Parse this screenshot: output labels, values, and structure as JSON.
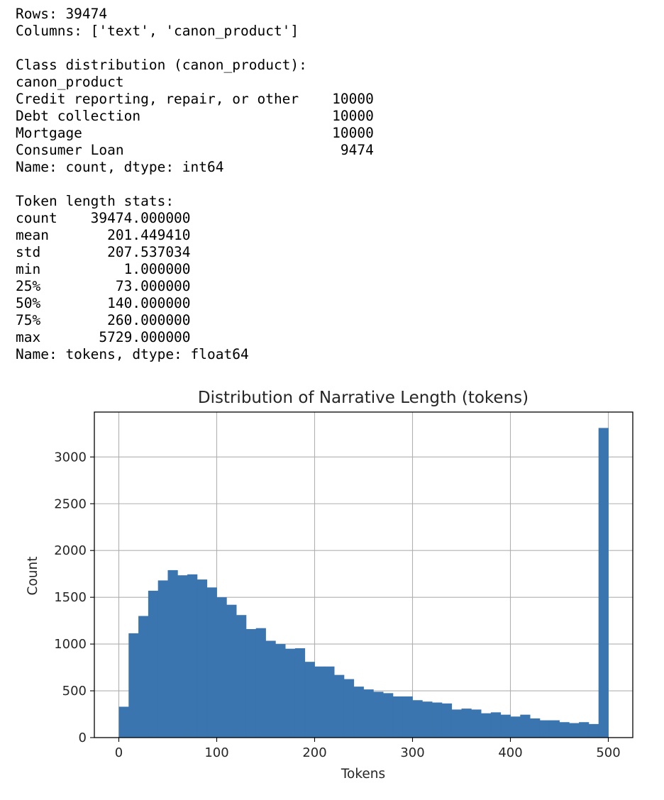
{
  "output": {
    "lines": [
      "Rows: 39474",
      "Columns: ['text', 'canon_product']",
      "",
      "Class distribution (canon_product):",
      "canon_product",
      "Credit reporting, repair, or other    10000",
      "Debt collection                       10000",
      "Mortgage                              10000",
      "Consumer Loan                          9474",
      "Name: count, dtype: int64",
      "",
      "Token length stats:",
      "count    39474.000000",
      "mean       201.449410",
      "std        207.537034",
      "min          1.000000",
      "25%         73.000000",
      "50%        140.000000",
      "75%        260.000000",
      "max       5729.000000",
      "Name: tokens, dtype: float64"
    ]
  },
  "chart_data": {
    "type": "bar",
    "title": "Distribution of Narrative Length (tokens)",
    "xlabel": "Tokens",
    "ylabel": "Count",
    "xlim": [
      -25,
      525
    ],
    "ylim": [
      0,
      3480
    ],
    "bin_width": 10,
    "bin_start": 0,
    "values": [
      330,
      1115,
      1300,
      1570,
      1680,
      1790,
      1735,
      1745,
      1690,
      1605,
      1500,
      1420,
      1310,
      1160,
      1170,
      1035,
      1000,
      950,
      955,
      810,
      760,
      760,
      670,
      625,
      545,
      515,
      490,
      475,
      440,
      440,
      400,
      385,
      375,
      365,
      300,
      310,
      300,
      260,
      270,
      245,
      225,
      245,
      205,
      185,
      185,
      165,
      155,
      165,
      145,
      3310
    ],
    "x_ticks": [
      0,
      100,
      200,
      300,
      400,
      500
    ],
    "y_ticks": [
      0,
      500,
      1000,
      1500,
      2000,
      2500,
      3000
    ],
    "grid": true,
    "colors": {
      "bar": "#3a75af",
      "grid": "#b0b0b0",
      "axis": "#000000"
    }
  }
}
